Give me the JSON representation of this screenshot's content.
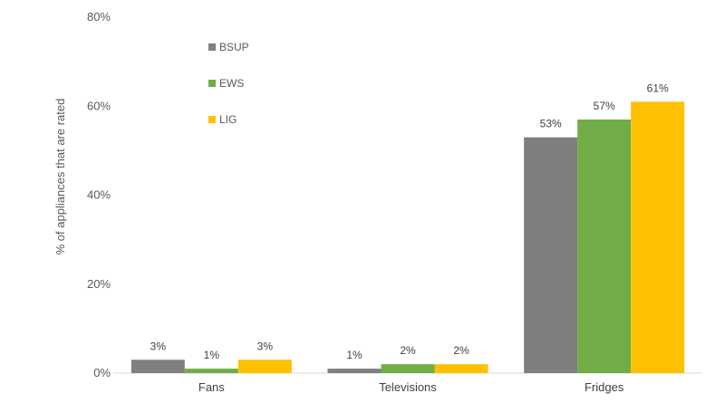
{
  "chart_data": {
    "type": "bar",
    "categories": [
      "Fans",
      "Televisions",
      "Fridges"
    ],
    "series": [
      {
        "name": "BSUP",
        "values": [
          3,
          1,
          53
        ],
        "labels": [
          "3%",
          "1%",
          "53%"
        ],
        "color": "#7f7f7f"
      },
      {
        "name": "EWS",
        "values": [
          1,
          2,
          57
        ],
        "labels": [
          "1%",
          "2%",
          "57%"
        ],
        "color": "#70ad47"
      },
      {
        "name": "LIG",
        "values": [
          3,
          2,
          61
        ],
        "labels": [
          "3%",
          "2%",
          "61%"
        ],
        "color": "#ffc000"
      }
    ],
    "ylabel": "% of appliances that are rated",
    "ylim": [
      0,
      80
    ],
    "yticks": [
      "0%",
      "20%",
      "40%",
      "60%",
      "80%"
    ],
    "grid": false,
    "legend_position": "top-left"
  }
}
